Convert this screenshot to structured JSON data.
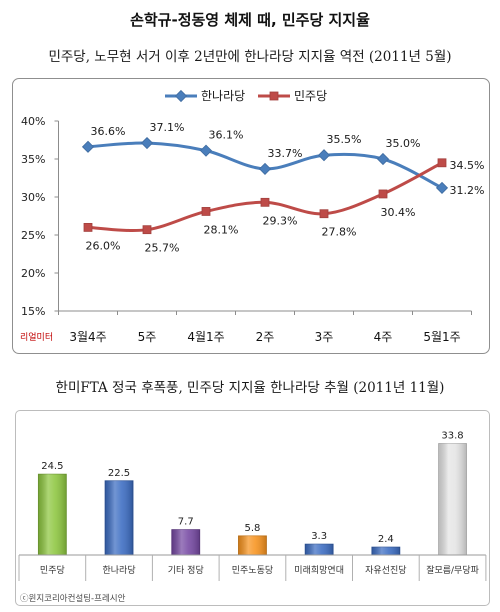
{
  "page": {
    "title": "손학규-정동영 체제 때, 민주당 지지율"
  },
  "chart_data": [
    {
      "type": "line",
      "title": "민주당, 노무현 서거 이후 2년만에 한나라당 지지율 역전 (2011년 5월)",
      "categories": [
        "3월4주",
        "5주",
        "4월1주",
        "2주",
        "3주",
        "4주",
        "5월1주"
      ],
      "series": [
        {
          "name": "한나라당",
          "values": [
            36.6,
            37.1,
            36.1,
            33.7,
            35.5,
            35.0,
            31.2
          ],
          "labels": [
            "36.6%",
            "37.1%",
            "36.1%",
            "33.7%",
            "35.5%",
            "35.0%",
            "31.2%"
          ],
          "color": "#4a7ebb",
          "marker": "diamond"
        },
        {
          "name": "민주당",
          "values": [
            26.0,
            25.7,
            28.1,
            29.3,
            27.8,
            30.4,
            34.5
          ],
          "labels": [
            "26.0%",
            "25.7%",
            "28.1%",
            "29.3%",
            "27.8%",
            "30.4%",
            "34.5%"
          ],
          "color": "#be4b48",
          "marker": "square"
        }
      ],
      "ylim": [
        15,
        40
      ],
      "yticks": [
        40,
        35,
        30,
        25,
        20,
        15
      ],
      "ytick_labels": [
        "40%",
        "35%",
        "30%",
        "25%",
        "20%",
        "15%"
      ],
      "smooth": true,
      "legend": "top",
      "grid": false,
      "source": "리얼미터",
      "source_color": "#c00000"
    },
    {
      "type": "bar",
      "title": "한미FTA 정국 후폭풍, 민주당 지지율 한나라당 추월 (2011년 11월)",
      "categories": [
        "민주당",
        "한나라당",
        "기타 정당",
        "민주노동당",
        "미래희망연대",
        "자유선진당",
        "잘모름/무당파"
      ],
      "values": [
        24.5,
        22.5,
        7.7,
        5.8,
        3.3,
        2.4,
        33.8
      ],
      "colors": [
        "#8dc63f",
        "#3b6cc2",
        "#7548a2",
        "#f7931e",
        "#3b6cc2",
        "#3b6cc2",
        "#e4e4e4"
      ],
      "data_labels": true,
      "grid": false,
      "source": "ⓒ윈지코리아컨설팅-프레시안"
    }
  ]
}
